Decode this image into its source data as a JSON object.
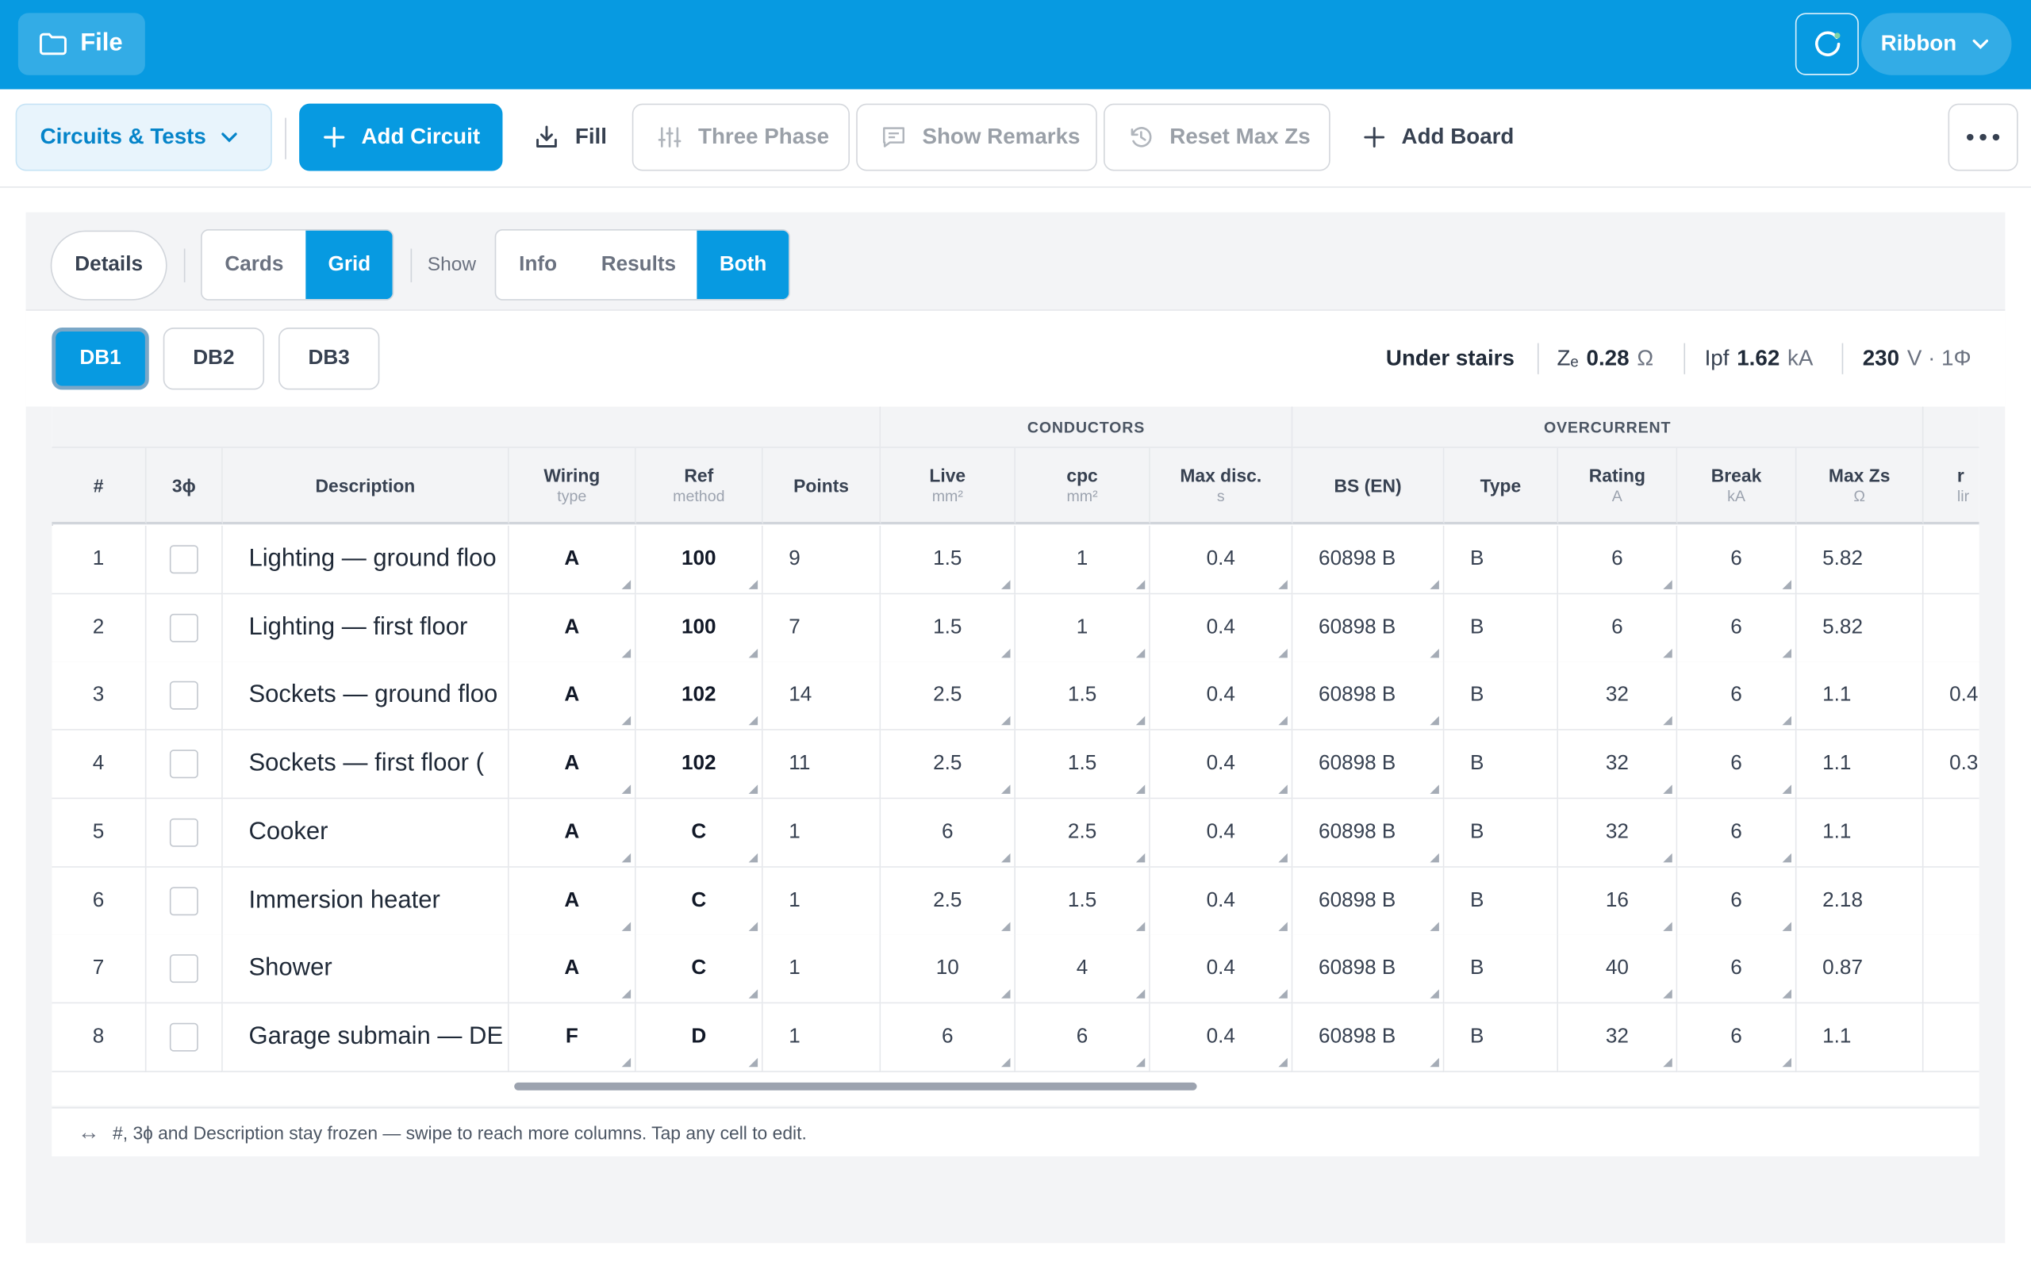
{
  "topbar": {
    "file_label": "File",
    "ribbon_label": "Ribbon"
  },
  "toolbar": {
    "circuits_label": "Circuits & Tests",
    "add_circuit_label": "Add Circuit",
    "fill_label": "Fill",
    "three_phase_label": "Three Phase",
    "show_remarks_label": "Show Remarks",
    "reset_maxzs_label": "Reset Max Zs",
    "add_board_label": "Add Board"
  },
  "controls": {
    "details_label": "Details",
    "view_options": [
      "Cards",
      "Grid"
    ],
    "view_selected": "Grid",
    "show_label": "Show",
    "show_options": [
      "Info",
      "Results",
      "Both"
    ],
    "show_selected": "Both"
  },
  "boards": {
    "items": [
      "DB1",
      "DB2",
      "DB3"
    ],
    "selected": "DB1",
    "location": "Under stairs",
    "ze_label": "Zₑ",
    "ze_value": "0.28",
    "ze_unit": "Ω",
    "ipf_label": "Ipf",
    "ipf_value": "1.62",
    "ipf_unit": "kA",
    "voltage_value": "230",
    "voltage_unit": "V · 1Φ"
  },
  "table": {
    "groups": [
      "CONDUCTORS",
      "OVERCURRENT"
    ],
    "headers": [
      {
        "title": "#",
        "sub": ""
      },
      {
        "title": "3ɸ",
        "sub": ""
      },
      {
        "title": "Description",
        "sub": ""
      },
      {
        "title": "Wiring",
        "sub": "type"
      },
      {
        "title": "Ref",
        "sub": "method"
      },
      {
        "title": "Points",
        "sub": ""
      },
      {
        "title": "Live",
        "sub": "mm²"
      },
      {
        "title": "cpc",
        "sub": "mm²"
      },
      {
        "title": "Max disc.",
        "sub": "s"
      },
      {
        "title": "BS (EN)",
        "sub": ""
      },
      {
        "title": "Type",
        "sub": ""
      },
      {
        "title": "Rating",
        "sub": "A"
      },
      {
        "title": "Break",
        "sub": "kA"
      },
      {
        "title": "Max Zs",
        "sub": "Ω"
      },
      {
        "title": "r",
        "sub": "lir"
      }
    ],
    "rows": [
      {
        "num": "1",
        "desc": "Lighting — ground floo",
        "wiring": "A",
        "ref": "100",
        "points": "9",
        "live": "1.5",
        "cpc": "1",
        "maxdisc": "0.4",
        "bs": "60898 B",
        "type": "B",
        "rating": "6",
        "break": "6",
        "maxzs": "5.82",
        "extra": ""
      },
      {
        "num": "2",
        "desc": "Lighting — first floor",
        "wiring": "A",
        "ref": "100",
        "points": "7",
        "live": "1.5",
        "cpc": "1",
        "maxdisc": "0.4",
        "bs": "60898 B",
        "type": "B",
        "rating": "6",
        "break": "6",
        "maxzs": "5.82",
        "extra": ""
      },
      {
        "num": "3",
        "desc": "Sockets — ground floo",
        "wiring": "A",
        "ref": "102",
        "points": "14",
        "live": "2.5",
        "cpc": "1.5",
        "maxdisc": "0.4",
        "bs": "60898 B",
        "type": "B",
        "rating": "32",
        "break": "6",
        "maxzs": "1.1",
        "extra": "0.4"
      },
      {
        "num": "4",
        "desc": "Sockets — first floor (",
        "wiring": "A",
        "ref": "102",
        "points": "11",
        "live": "2.5",
        "cpc": "1.5",
        "maxdisc": "0.4",
        "bs": "60898 B",
        "type": "B",
        "rating": "32",
        "break": "6",
        "maxzs": "1.1",
        "extra": "0.3"
      },
      {
        "num": "5",
        "desc": "Cooker",
        "wiring": "A",
        "ref": "C",
        "points": "1",
        "live": "6",
        "cpc": "2.5",
        "maxdisc": "0.4",
        "bs": "60898 B",
        "type": "B",
        "rating": "32",
        "break": "6",
        "maxzs": "1.1",
        "extra": ""
      },
      {
        "num": "6",
        "desc": "Immersion heater",
        "wiring": "A",
        "ref": "C",
        "points": "1",
        "live": "2.5",
        "cpc": "1.5",
        "maxdisc": "0.4",
        "bs": "60898 B",
        "type": "B",
        "rating": "16",
        "break": "6",
        "maxzs": "2.18",
        "extra": ""
      },
      {
        "num": "7",
        "desc": "Shower",
        "wiring": "A",
        "ref": "C",
        "points": "1",
        "live": "10",
        "cpc": "4",
        "maxdisc": "0.4",
        "bs": "60898 B",
        "type": "B",
        "rating": "40",
        "break": "6",
        "maxzs": "0.87",
        "extra": ""
      },
      {
        "num": "8",
        "desc": "Garage submain — DE",
        "wiring": "F",
        "ref": "D",
        "points": "1",
        "live": "6",
        "cpc": "6",
        "maxdisc": "0.4",
        "bs": "60898 B",
        "type": "B",
        "rating": "32",
        "break": "6",
        "maxzs": "1.1",
        "extra": ""
      }
    ]
  },
  "footnote": {
    "icon_text": "↔",
    "text": "#, 3ɸ and Description stay frozen — swipe to reach more columns. Tap any cell to edit."
  }
}
